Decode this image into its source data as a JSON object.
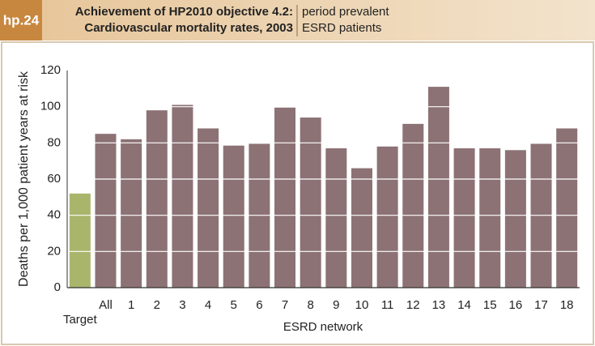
{
  "header": {
    "badge": "hp.24",
    "title": [
      "Achievement of HP2010 objective 4.2:",
      "Cardiovascular mortality rates, 2003"
    ],
    "subtitle": [
      "period prevalent",
      "ESRD patients"
    ]
  },
  "chart_data": {
    "type": "bar",
    "categories": [
      "Target",
      "All",
      "1",
      "2",
      "3",
      "4",
      "5",
      "6",
      "7",
      "8",
      "9",
      "10",
      "11",
      "12",
      "13",
      "14",
      "15",
      "16",
      "17",
      "18"
    ],
    "values": [
      52,
      85,
      82,
      98,
      101,
      88,
      78.5,
      79.5,
      99.5,
      94,
      77,
      66,
      78,
      90.5,
      111,
      77,
      77,
      76,
      79.5,
      88
    ],
    "colors": [
      "#a9b56b",
      "#8c7275",
      "#8c7275",
      "#8c7275",
      "#8c7275",
      "#8c7275",
      "#8c7275",
      "#8c7275",
      "#8c7275",
      "#8c7275",
      "#8c7275",
      "#8c7275",
      "#8c7275",
      "#8c7275",
      "#8c7275",
      "#8c7275",
      "#8c7275",
      "#8c7275",
      "#8c7275",
      "#8c7275"
    ],
    "ylabel": "Deaths per 1,000 patient years at risk",
    "xlabel": "ESRD network",
    "ylim": [
      0,
      120
    ],
    "yticks": [
      0,
      20,
      40,
      60,
      80,
      100,
      120
    ],
    "grid": true
  }
}
